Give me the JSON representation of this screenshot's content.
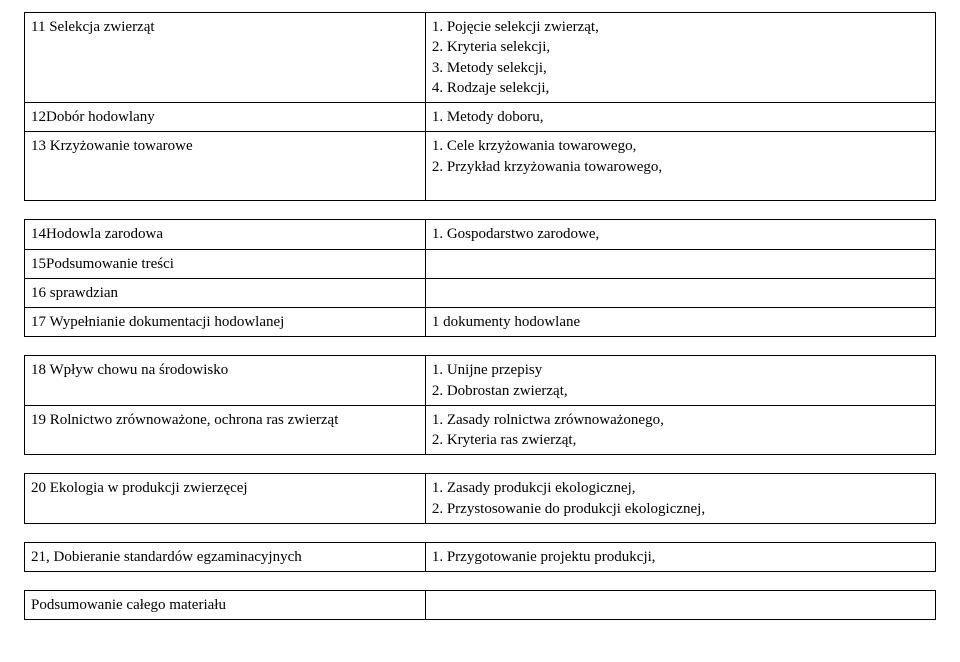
{
  "table1": {
    "rows": [
      {
        "left": "11 Selekcja zwierząt",
        "right": "1. Pojęcie selekcji zwierząt,\n2. Kryteria selekcji,\n3. Metody selekcji,\n4. Rodzaje selekcji,"
      },
      {
        "left": "12Dobór hodowlany",
        "right": "1. Metody doboru,"
      },
      {
        "left": "13 Krzyżowanie towarowe",
        "right": "1. Cele krzyżowania towarowego,\n2. Przykład krzyżowania towarowego,"
      }
    ]
  },
  "table2": {
    "rows": [
      {
        "left": "14Hodowla zarodowa",
        "right": "1. Gospodarstwo zarodowe,"
      },
      {
        "left": "15Podsumowanie treści",
        "right": ""
      },
      {
        "left": "16 sprawdzian",
        "right": ""
      },
      {
        "left": "17 Wypełnianie dokumentacji hodowlanej",
        "right": " 1 dokumenty hodowlane"
      }
    ]
  },
  "table3": {
    "rows": [
      {
        "left": "18 Wpływ chowu na środowisko",
        "right": "1. Unijne przepisy\n2. Dobrostan zwierząt,"
      },
      {
        "left": "19 Rolnictwo zrównoważone, ochrona ras zwierząt",
        "right": "1. Zasady rolnictwa zrównoważonego,\n2. Kryteria  ras zwierząt,"
      }
    ]
  },
  "table4": {
    "rows": [
      {
        "left": "20 Ekologia w produkcji zwierzęcej",
        "right": "1. Zasady produkcji ekologicznej,\n2. Przystosowanie do produkcji ekologicznej,"
      }
    ]
  },
  "table5": {
    "rows": [
      {
        "left": "21, Dobieranie standardów egzaminacyjnych",
        "right": "1. Przygotowanie projektu produkcji,"
      }
    ]
  },
  "table6": {
    "rows": [
      {
        "left": "Podsumowanie całego materiału",
        "right": ""
      }
    ]
  }
}
